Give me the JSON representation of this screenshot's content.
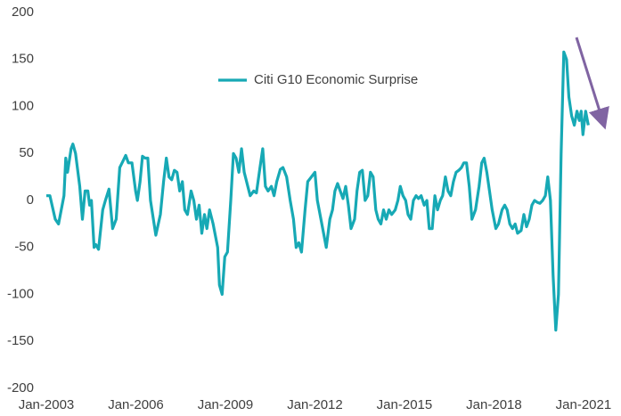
{
  "chart_data": {
    "type": "line",
    "legend": "upper-center",
    "xlim": [
      2003,
      2021.3
    ],
    "ylim": [
      -200,
      200
    ],
    "yticks": [
      -200,
      -150,
      -100,
      -50,
      0,
      50,
      100,
      150,
      200
    ],
    "xticks": [
      {
        "value": 2003,
        "label": "Jan-2003"
      },
      {
        "value": 2006,
        "label": "Jan-2006"
      },
      {
        "value": 2009,
        "label": "Jan-2009"
      },
      {
        "value": 2012,
        "label": "Jan-2012"
      },
      {
        "value": 2015,
        "label": "Jan-2015"
      },
      {
        "value": 2018,
        "label": "Jan-2018"
      },
      {
        "value": 2021,
        "label": "Jan-2021"
      }
    ],
    "grid": false,
    "series": [
      {
        "name": "Citi G10 Economic Surprise",
        "color": "#17a9b5",
        "x": [
          2003.0,
          2003.12,
          2003.3,
          2003.41,
          2003.59,
          2003.65,
          2003.71,
          2003.83,
          2003.89,
          2003.98,
          2004.12,
          2004.21,
          2004.3,
          2004.39,
          2004.45,
          2004.51,
          2004.6,
          2004.66,
          2004.75,
          2004.89,
          2004.98,
          2005.1,
          2005.22,
          2005.34,
          2005.46,
          2005.57,
          2005.66,
          2005.75,
          2005.87,
          2005.99,
          2006.05,
          2006.14,
          2006.22,
          2006.31,
          2006.4,
          2006.49,
          2006.67,
          2006.82,
          2006.93,
          2007.02,
          2007.11,
          2007.2,
          2007.29,
          2007.38,
          2007.47,
          2007.56,
          2007.64,
          2007.73,
          2007.85,
          2007.94,
          2008.03,
          2008.12,
          2008.21,
          2008.3,
          2008.38,
          2008.47,
          2008.59,
          2008.74,
          2008.8,
          2008.89,
          2008.98,
          2009.07,
          2009.18,
          2009.27,
          2009.36,
          2009.45,
          2009.54,
          2009.63,
          2009.75,
          2009.83,
          2009.95,
          2010.04,
          2010.16,
          2010.25,
          2010.34,
          2010.43,
          2010.54,
          2010.63,
          2010.72,
          2010.84,
          2010.93,
          2011.05,
          2011.17,
          2011.28,
          2011.37,
          2011.46,
          2011.55,
          2011.67,
          2011.76,
          2011.88,
          2012.0,
          2012.08,
          2012.2,
          2012.29,
          2012.38,
          2012.5,
          2012.59,
          2012.67,
          2012.76,
          2012.85,
          2012.94,
          2013.03,
          2013.12,
          2013.21,
          2013.33,
          2013.41,
          2013.5,
          2013.59,
          2013.68,
          2013.77,
          2013.86,
          2013.95,
          2014.04,
          2014.12,
          2014.21,
          2014.3,
          2014.39,
          2014.48,
          2014.57,
          2014.69,
          2014.78,
          2014.86,
          2014.95,
          2015.04,
          2015.12,
          2015.21,
          2015.3,
          2015.39,
          2015.47,
          2015.56,
          2015.66,
          2015.75,
          2015.83,
          2015.93,
          2016.02,
          2016.11,
          2016.2,
          2016.28,
          2016.37,
          2016.46,
          2016.55,
          2016.64,
          2016.73,
          2016.82,
          2016.91,
          2016.99,
          2017.08,
          2017.17,
          2017.26,
          2017.38,
          2017.5,
          2017.59,
          2017.67,
          2017.76,
          2017.85,
          2017.94,
          2018.06,
          2018.15,
          2018.27,
          2018.36,
          2018.44,
          2018.53,
          2018.62,
          2018.71,
          2018.79,
          2018.91,
          2019.0,
          2019.09,
          2019.18,
          2019.27,
          2019.36,
          2019.45,
          2019.54,
          2019.63,
          2019.72,
          2019.8,
          2019.89,
          2019.98,
          2020.07,
          2020.16,
          2020.25,
          2020.34,
          2020.43,
          2020.51,
          2020.6,
          2020.69,
          2020.78,
          2020.86,
          2020.92,
          2020.98,
          2021.07,
          2021.16
        ],
        "values": [
          5,
          5,
          -20,
          -25,
          5,
          45,
          30,
          55,
          60,
          50,
          15,
          -20,
          10,
          10,
          -5,
          0,
          -50,
          -47,
          -52,
          -10,
          0,
          12,
          -30,
          -20,
          35,
          42,
          48,
          40,
          40,
          10,
          0,
          20,
          47,
          45,
          45,
          0,
          -37,
          -15,
          20,
          45,
          25,
          22,
          32,
          30,
          10,
          20,
          -10,
          -15,
          10,
          0,
          -20,
          -5,
          -35,
          -15,
          -30,
          -10,
          -25,
          -50,
          -90,
          -100,
          -60,
          -55,
          0,
          50,
          45,
          30,
          55,
          30,
          15,
          5,
          10,
          8,
          35,
          55,
          15,
          10,
          15,
          5,
          20,
          33,
          35,
          25,
          0,
          -20,
          -50,
          -45,
          -55,
          -10,
          20,
          25,
          30,
          0,
          -20,
          -35,
          -50,
          -20,
          -10,
          10,
          18,
          10,
          2,
          15,
          -5,
          -30,
          -20,
          10,
          30,
          32,
          0,
          5,
          30,
          25,
          -10,
          -20,
          -25,
          -10,
          -20,
          -10,
          -15,
          -10,
          0,
          15,
          5,
          0,
          -15,
          -20,
          0,
          5,
          2,
          5,
          -5,
          0,
          -30,
          -30,
          5,
          -10,
          0,
          5,
          25,
          10,
          5,
          20,
          30,
          32,
          35,
          40,
          40,
          15,
          -20,
          -10,
          15,
          40,
          45,
          30,
          10,
          -10,
          -30,
          -25,
          -10,
          -5,
          -10,
          -25,
          -30,
          -25,
          -35,
          -32,
          -15,
          -28,
          -20,
          -5,
          0,
          -2,
          -3,
          0,
          5,
          25,
          0,
          -80,
          -138,
          -100,
          50,
          158,
          150,
          110,
          90,
          80,
          95,
          85,
          95,
          70,
          95,
          80
        ]
      }
    ]
  }
}
